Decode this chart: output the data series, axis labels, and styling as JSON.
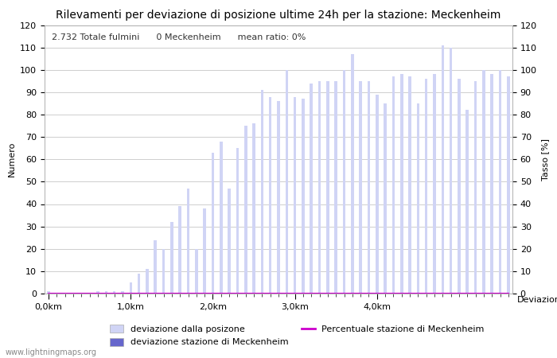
{
  "title": "Rilevamenti per deviazione di posizione ultime 24h per la stazione: Meckenheim",
  "subtitle": "2.732 Totale fulmini      0 Meckenheim      mean ratio: 0%",
  "xlabel": "Deviazioni",
  "ylabel_left": "Numero",
  "ylabel_right": "Tasso [%]",
  "ylim": [
    0,
    120
  ],
  "xtick_labels": [
    "0,0km",
    "1,0km",
    "2,0km",
    "3,0km",
    "4,0km"
  ],
  "xtick_positions": [
    0,
    10,
    20,
    30,
    40
  ],
  "watermark": "www.lightningmaps.org",
  "legend_entries": [
    "deviazione dalla posizone",
    "deviazione stazione di Meckenheim",
    "Percentuale stazione di Meckenheim"
  ],
  "bar_color_light": "#d0d4f5",
  "bar_color_dark": "#6666cc",
  "line_color": "#cc00cc",
  "background_color": "#ffffff",
  "bar_heights_light": [
    1,
    0,
    0,
    0,
    0,
    0,
    1,
    1,
    1,
    1,
    5,
    9,
    11,
    24,
    20,
    32,
    39,
    47,
    20,
    38,
    63,
    68,
    47,
    65,
    75,
    76,
    91,
    88,
    86,
    100,
    88,
    87,
    94,
    95,
    95,
    95,
    100,
    107,
    95,
    95,
    89,
    85,
    97,
    98,
    97,
    85,
    96,
    98,
    111,
    110,
    96,
    82,
    95,
    100,
    98,
    100,
    97
  ],
  "bar_heights_dark": [
    0,
    0,
    0,
    0,
    0,
    0,
    0,
    0,
    0,
    0,
    0,
    0,
    0,
    0,
    0,
    0,
    0,
    0,
    0,
    0,
    0,
    0,
    0,
    0,
    0,
    0,
    0,
    0,
    0,
    0,
    0,
    0,
    0,
    0,
    0,
    0,
    0,
    0,
    0,
    0,
    0,
    0,
    0,
    0,
    0,
    0,
    0,
    0,
    0,
    0,
    0,
    0,
    0,
    0,
    0,
    0,
    0
  ],
  "line_values": [
    0,
    0,
    0,
    0,
    0,
    0,
    0,
    0,
    0,
    0,
    0,
    0,
    0,
    0,
    0,
    0,
    0,
    0,
    0,
    0,
    0,
    0,
    0,
    0,
    0,
    0,
    0,
    0,
    0,
    0,
    0,
    0,
    0,
    0,
    0,
    0,
    0,
    0,
    0,
    0,
    0,
    0,
    0,
    0,
    0,
    0,
    0,
    0,
    0,
    0,
    0,
    0,
    0,
    0,
    0,
    0,
    0
  ],
  "bar_width": 0.35,
  "title_fontsize": 10,
  "label_fontsize": 8,
  "tick_fontsize": 8
}
